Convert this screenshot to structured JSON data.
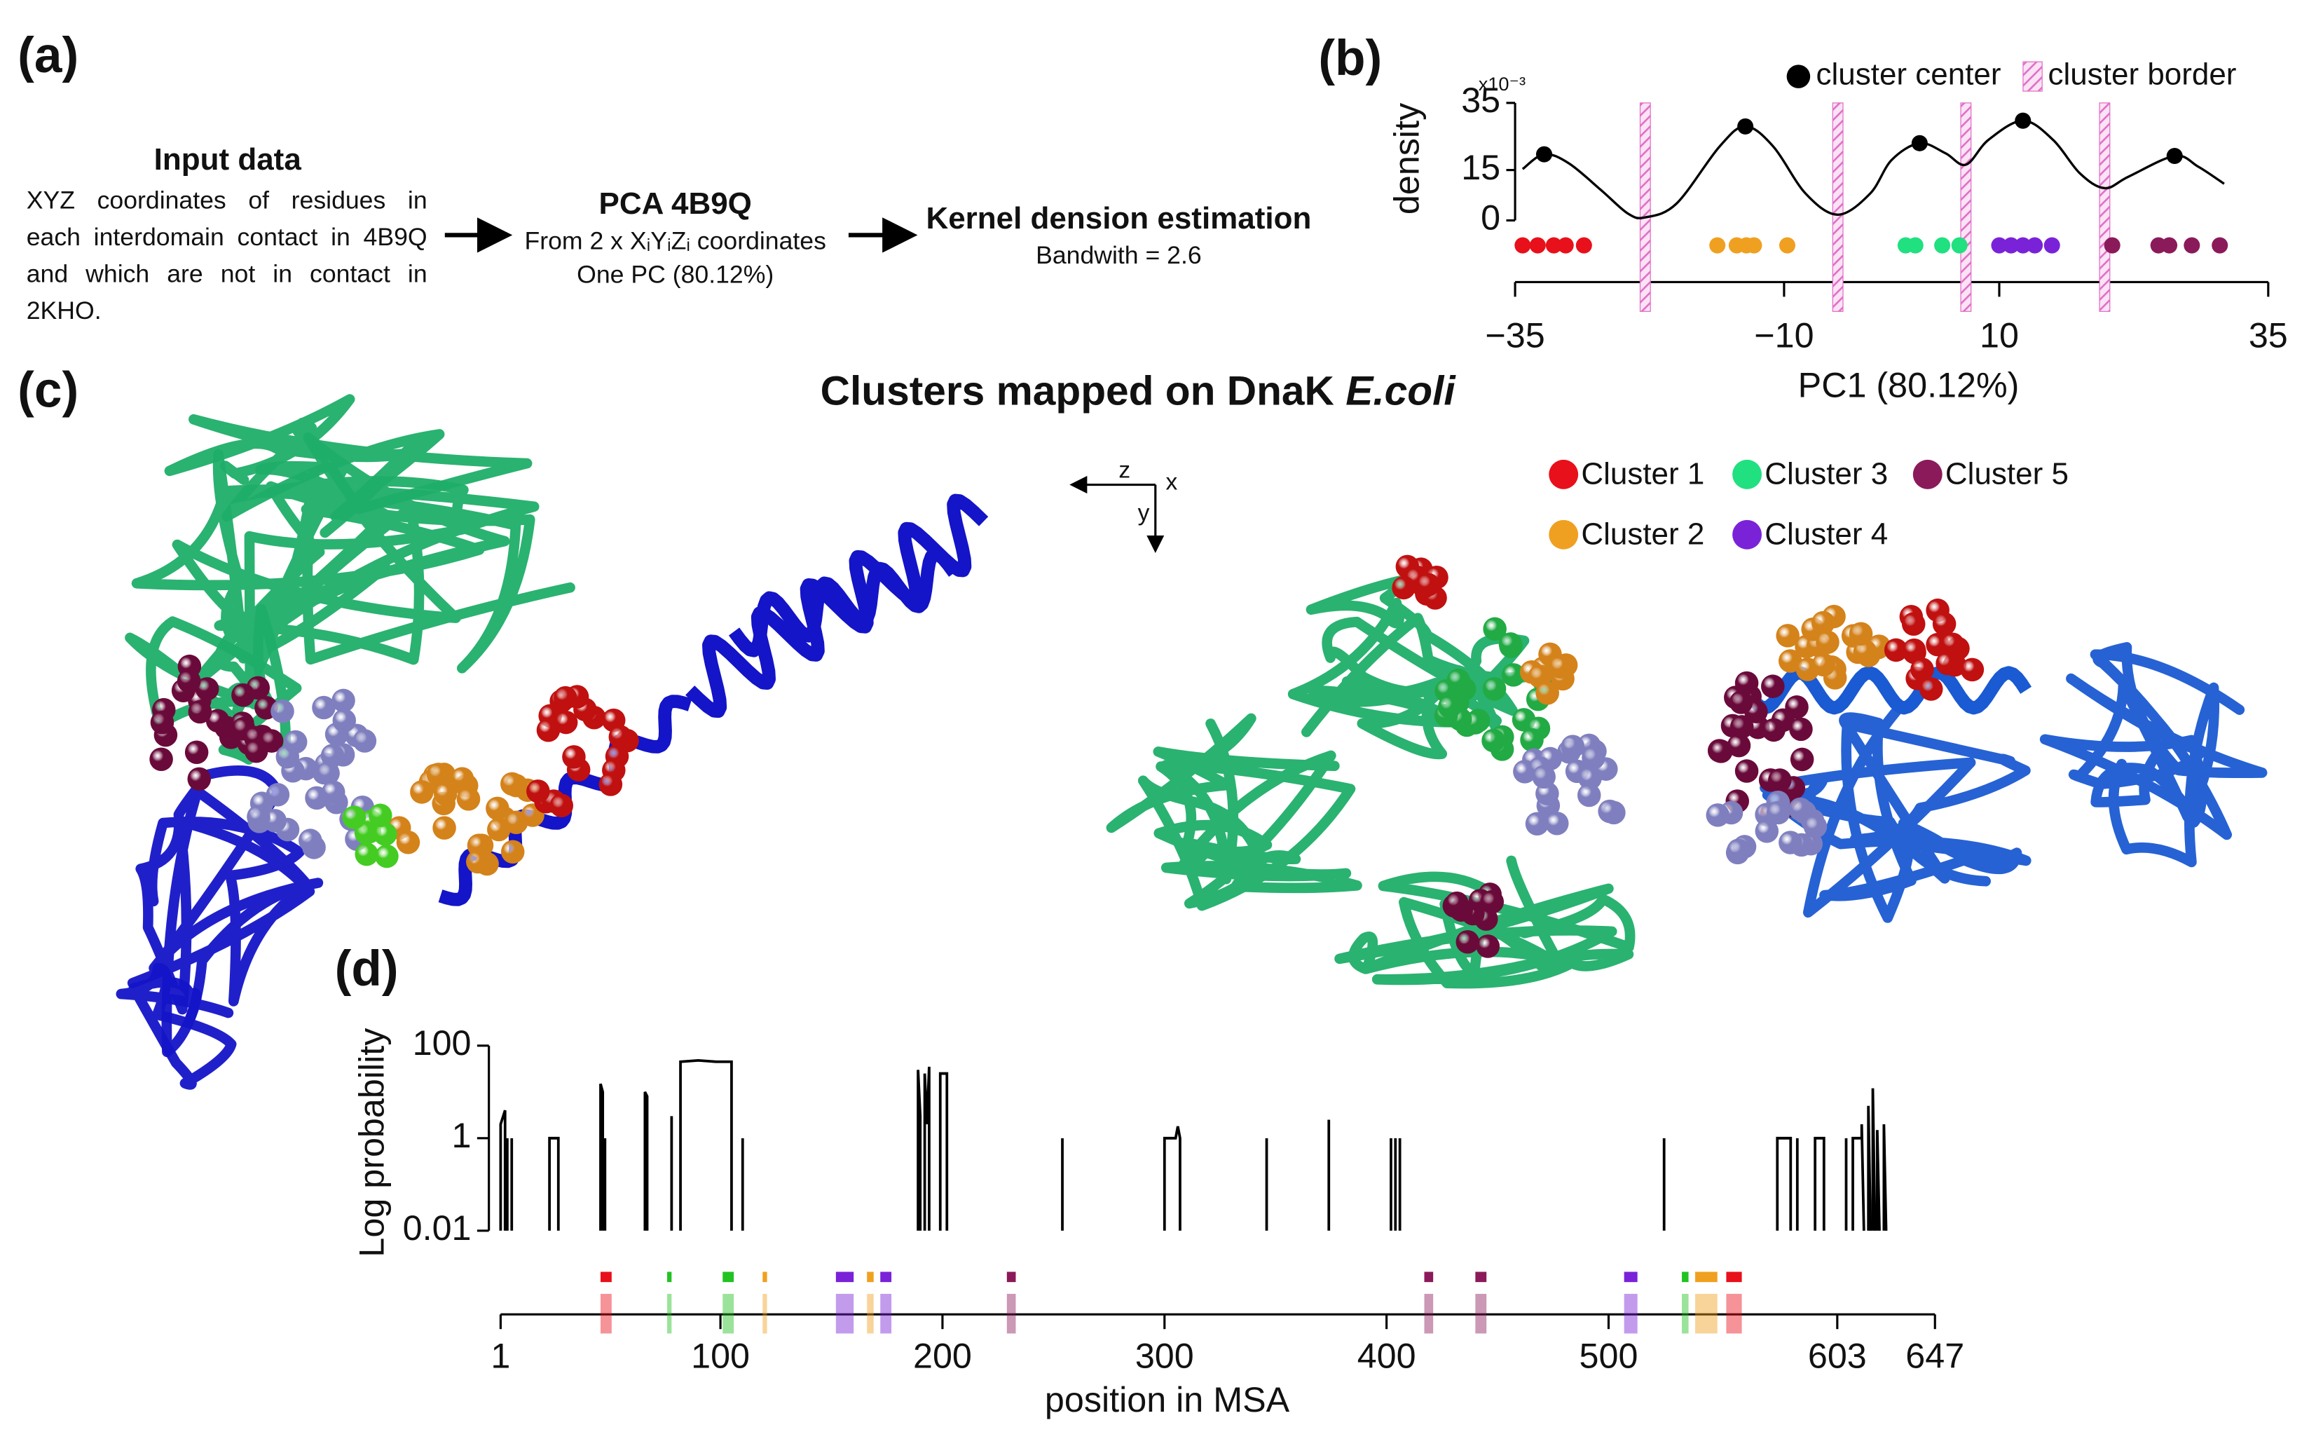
{
  "panels": {
    "a": "(a)",
    "b": "(b)",
    "c": "(c)",
    "d": "(d)"
  },
  "pipeline": {
    "step1_title": "Input data",
    "step1_text": "XYZ coordinates of residues in each interdomain contact in 4B9Q and which are not in contact in 2KHO.",
    "step2_title": "PCA 4B9Q",
    "step2_line1": "From 2 x XᵢYᵢZᵢ coordinates",
    "step2_line2": "One PC (80.12%)",
    "step3_title": "Kernel dension estimation",
    "step3_text": "Bandwith = 2.6"
  },
  "structure": {
    "title": "Clusters mapped on DnaK",
    "title_italic": "E.coli",
    "axes": {
      "z": "z",
      "x": "x",
      "y": "y"
    }
  },
  "chart_data": [
    {
      "type": "line",
      "y_label": "density",
      "y_multiplier": "x10⁻³",
      "x_label": "PC1 (80.12%)",
      "xlim": [
        -35,
        35
      ],
      "xticks": [
        {
          "value": -35,
          "label": "−35"
        },
        {
          "value": -10,
          "label": "−10"
        },
        10,
        35
      ],
      "ylim": [
        0,
        35
      ],
      "yticks": [
        0,
        15,
        35
      ],
      "color": "#000000",
      "x": [
        -34.3,
        -32.3,
        -30,
        -27,
        -24.5,
        -22.9,
        -20,
        -16,
        -13.6,
        -11,
        -8,
        -5,
        -2,
        0,
        2.6,
        5,
        6.9,
        9,
        12.2,
        15,
        17.5,
        19.8,
        22,
        26.3,
        28.5,
        30.9
      ],
      "values": [
        15.3,
        19.7,
        17,
        9,
        2,
        0.9,
        5,
        22,
        28,
        22,
        8,
        1.7,
        8,
        18,
        23,
        20,
        16.6,
        24,
        29.7,
        24,
        14,
        9.6,
        13,
        19.2,
        16,
        10.9
      ],
      "centers": {
        "name": "cluster center",
        "color": "#000000",
        "x": [
          -32.3,
          -13.6,
          2.6,
          12.2,
          26.3
        ],
        "values": [
          19.7,
          28,
          23,
          29.7,
          19.2
        ]
      },
      "borders": {
        "name": "cluster border",
        "color": "#e070c8",
        "x": [
          -22.9,
          -5.0,
          6.9,
          19.8
        ]
      },
      "members": [
        {
          "name": "Cluster 1",
          "color": "#e8101a",
          "x": [
            -34.3,
            -32.9,
            -31.4,
            -30.3,
            -28.6
          ]
        },
        {
          "name": "Cluster 2",
          "color": "#f0a020",
          "x": [
            -16.2,
            -14.4,
            -13.5,
            -12.8,
            -9.7
          ]
        },
        {
          "name": "Cluster 3",
          "color": "#20e080",
          "x": [
            1.3,
            2.2,
            4.7,
            6.3
          ]
        },
        {
          "name": "Cluster 4",
          "color": "#7a22d8",
          "x": [
            10.0,
            11.1,
            12.2,
            13.3,
            14.9
          ]
        },
        {
          "name": "Cluster 5",
          "color": "#8b1a5a",
          "x": [
            20.5,
            24.8,
            25.8,
            27.9,
            30.5
          ]
        }
      ]
    },
    {
      "type": "line",
      "y_label": "Log probability",
      "x_label": "position in MSA",
      "log_y": true,
      "xlim": [
        1,
        647
      ],
      "xticks": [
        1,
        100,
        200,
        300,
        400,
        500,
        603,
        647
      ],
      "ylim": [
        0.01,
        100
      ],
      "yticks": [
        0.01,
        1,
        100
      ],
      "color": "#000000",
      "x": [
        1,
        1,
        3,
        3,
        null,
        4,
        4,
        null,
        6,
        6,
        null,
        23,
        23,
        27,
        27,
        null,
        46,
        46,
        47,
        47,
        null,
        48,
        48,
        null,
        66,
        66,
        67,
        67,
        null,
        78,
        78,
        null,
        82,
        82,
        90,
        98,
        105,
        105,
        null,
        110,
        110,
        null,
        189,
        189,
        190,
        190,
        null,
        192,
        192,
        193,
        194,
        194,
        null,
        199,
        199,
        202,
        202,
        null,
        254,
        254,
        null,
        300,
        300,
        305,
        306,
        307,
        307,
        null,
        346,
        346,
        null,
        374,
        374,
        null,
        402,
        402,
        null,
        404,
        404,
        null,
        406,
        406,
        null,
        525,
        525,
        null,
        576,
        576,
        582,
        582,
        null,
        585,
        585,
        null,
        593,
        593,
        597,
        597,
        null,
        607,
        607,
        null,
        610,
        610,
        614,
        614,
        615,
        null,
        617,
        617,
        618,
        null,
        619,
        619,
        620,
        null,
        621,
        621,
        622,
        null,
        624,
        624,
        625
      ],
      "values": [
        0.01,
        2,
        4,
        0.01,
        null,
        0.01,
        1,
        null,
        0.01,
        1,
        null,
        0.01,
        1,
        1,
        0.01,
        null,
        0.01,
        15,
        10,
        0.01,
        null,
        0.01,
        1,
        null,
        0.01,
        10,
        8,
        0.01,
        null,
        0.01,
        3,
        null,
        0.01,
        45,
        48,
        45,
        45,
        0.01,
        null,
        0.01,
        1,
        null,
        0.01,
        30,
        3,
        0.01,
        null,
        0.01,
        25,
        2,
        35,
        0.01,
        null,
        0.01,
        25,
        25,
        0.01,
        null,
        0.01,
        1,
        null,
        0.01,
        1,
        1,
        1.8,
        1,
        0.01,
        null,
        0.01,
        1,
        null,
        0.01,
        2.5,
        null,
        0.01,
        1,
        null,
        0.01,
        1,
        null,
        0.01,
        1,
        null,
        0.01,
        1,
        null,
        0.01,
        1,
        1,
        0.01,
        null,
        0.01,
        1,
        null,
        0.01,
        1,
        1,
        0.01,
        null,
        0.01,
        1,
        null,
        0.01,
        1,
        1,
        2,
        0.01,
        null,
        0.01,
        5,
        0.01,
        null,
        0.01,
        12,
        0.01,
        null,
        0.01,
        1.5,
        0.01,
        null,
        0.01,
        2,
        0.01
      ],
      "segments": [
        {
          "color": "#e8101a",
          "start": 46,
          "end": 51
        },
        {
          "color": "#22c222",
          "start": 76,
          "end": 77
        },
        {
          "color": "#22c222",
          "start": 101,
          "end": 106
        },
        {
          "color": "#f0a020",
          "start": 119,
          "end": 120
        },
        {
          "color": "#7a22d8",
          "start": 152,
          "end": 160
        },
        {
          "color": "#f0a020",
          "start": 166,
          "end": 169
        },
        {
          "color": "#7a22d8",
          "start": 172,
          "end": 177
        },
        {
          "color": "#8b1a5a",
          "start": 229,
          "end": 233
        },
        {
          "color": "#8b1a5a",
          "start": 417,
          "end": 421
        },
        {
          "color": "#8b1a5a",
          "start": 440,
          "end": 445
        },
        {
          "color": "#7a22d8",
          "start": 507,
          "end": 513
        },
        {
          "color": "#22c222",
          "start": 533,
          "end": 536
        },
        {
          "color": "#f0a020",
          "start": 539,
          "end": 549
        },
        {
          "color": "#e8101a",
          "start": 553,
          "end": 560
        }
      ]
    }
  ]
}
